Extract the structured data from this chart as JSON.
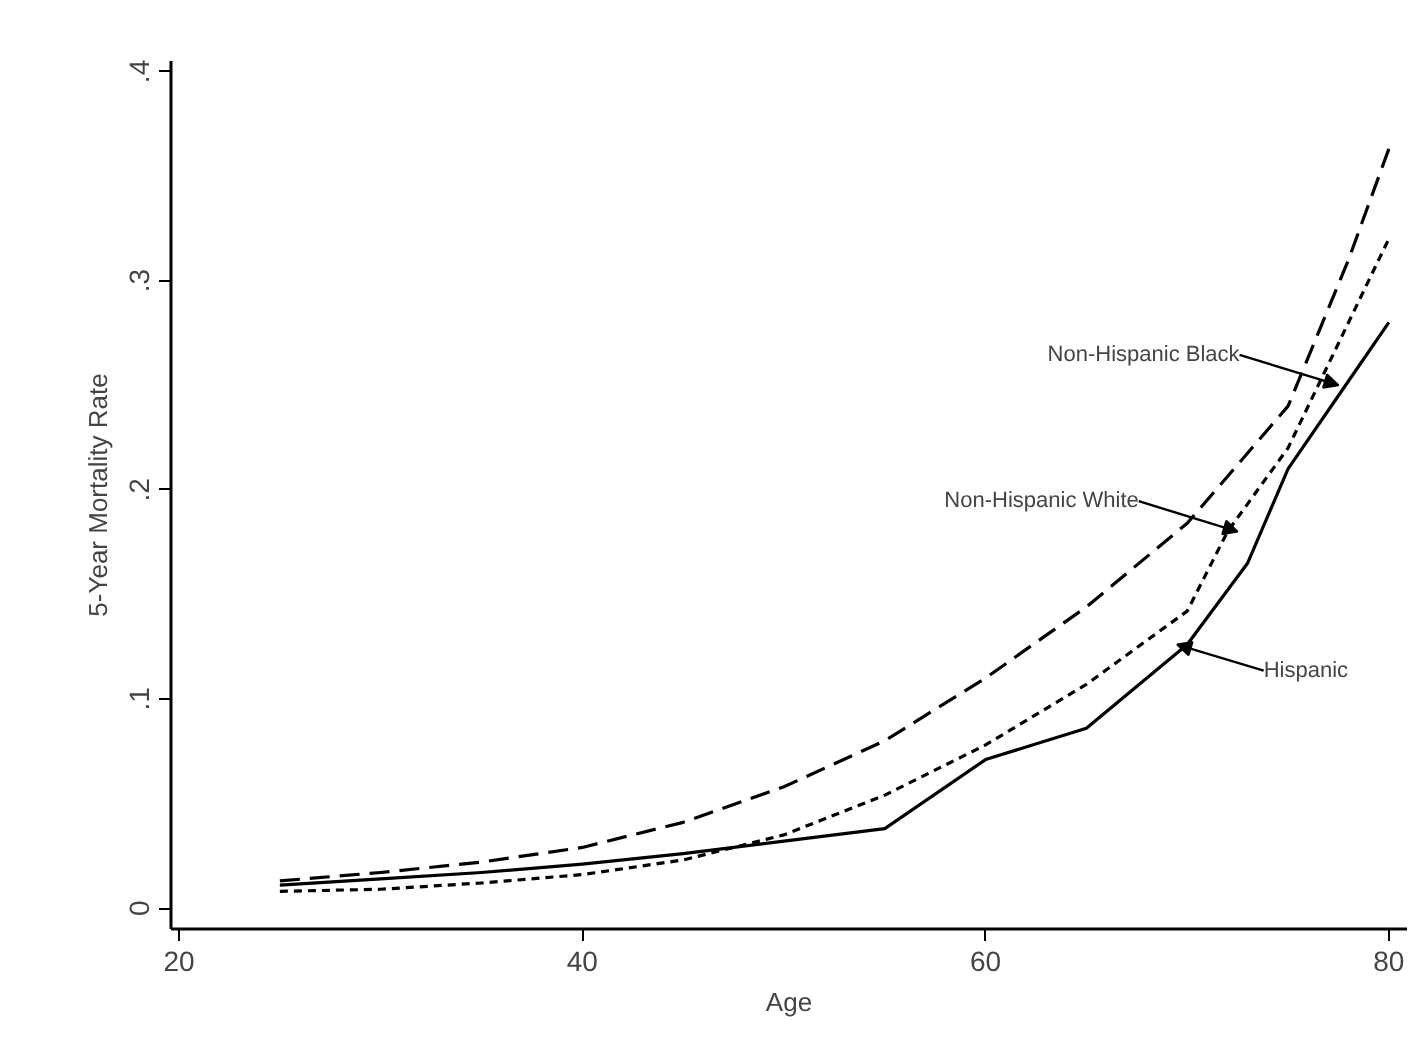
{
  "chart_data": {
    "type": "line",
    "xlabel": "Age",
    "ylabel": "5-Year Mortality Rate",
    "xlim": [
      19.6,
      80.9
    ],
    "ylim": [
      -0.01,
      0.405
    ],
    "xticks": [
      20,
      40,
      60,
      80
    ],
    "yticks": [
      {
        "value": 0,
        "label": "0"
      },
      {
        "value": 0.1,
        "label": ".1"
      },
      {
        "value": 0.2,
        "label": ".2"
      },
      {
        "value": 0.3,
        "label": ".3"
      },
      {
        "value": 0.4,
        "label": ".4"
      }
    ],
    "grid": false,
    "marker": "none",
    "series": [
      {
        "color": "#000000",
        "line_style": "dashed",
        "x": [
          25,
          30,
          35,
          40,
          45,
          50,
          55,
          60,
          65,
          70,
          75,
          78,
          80
        ],
        "values": [
          0.013,
          0.017,
          0.022,
          0.029,
          0.041,
          0.058,
          0.08,
          0.11,
          0.144,
          0.184,
          0.24,
          0.31,
          0.363
        ]
      },
      {
        "color": "#000000",
        "line_style": "dotted",
        "x": [
          25,
          30,
          35,
          40,
          45,
          50,
          55,
          60,
          65,
          70,
          72,
          75,
          78,
          80
        ],
        "values": [
          0.008,
          0.009,
          0.012,
          0.016,
          0.023,
          0.035,
          0.054,
          0.078,
          0.107,
          0.142,
          0.18,
          0.22,
          0.28,
          0.32
        ]
      },
      {
        "color": "#000000",
        "line_style": "solid",
        "x": [
          25,
          30,
          35,
          40,
          45,
          50,
          55,
          60,
          65,
          70,
          73,
          75,
          78,
          80
        ],
        "values": [
          0.011,
          0.014,
          0.017,
          0.021,
          0.026,
          0.032,
          0.038,
          0.071,
          0.086,
          0.126,
          0.165,
          0.21,
          0.252,
          0.28
        ]
      }
    ],
    "annotations": [
      {
        "text": "Non-Hispanic Black",
        "x": 77.5,
        "y": 0.25
      },
      {
        "text": "Non-Hispanic White",
        "x": 72.5,
        "y": 0.18
      },
      {
        "text": "Hispanic",
        "x": 69.5,
        "y": 0.126
      }
    ]
  }
}
